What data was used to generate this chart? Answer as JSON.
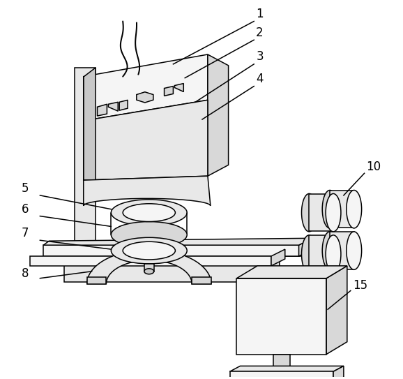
{
  "bg_color": "#ffffff",
  "line_color": "#000000",
  "lw": 1.1,
  "figsize": [
    5.78,
    5.43
  ],
  "dpi": 100,
  "face_light": "#f5f5f5",
  "face_mid": "#e8e8e8",
  "face_dark": "#d8d8d8",
  "face_darker": "#c8c8c8"
}
